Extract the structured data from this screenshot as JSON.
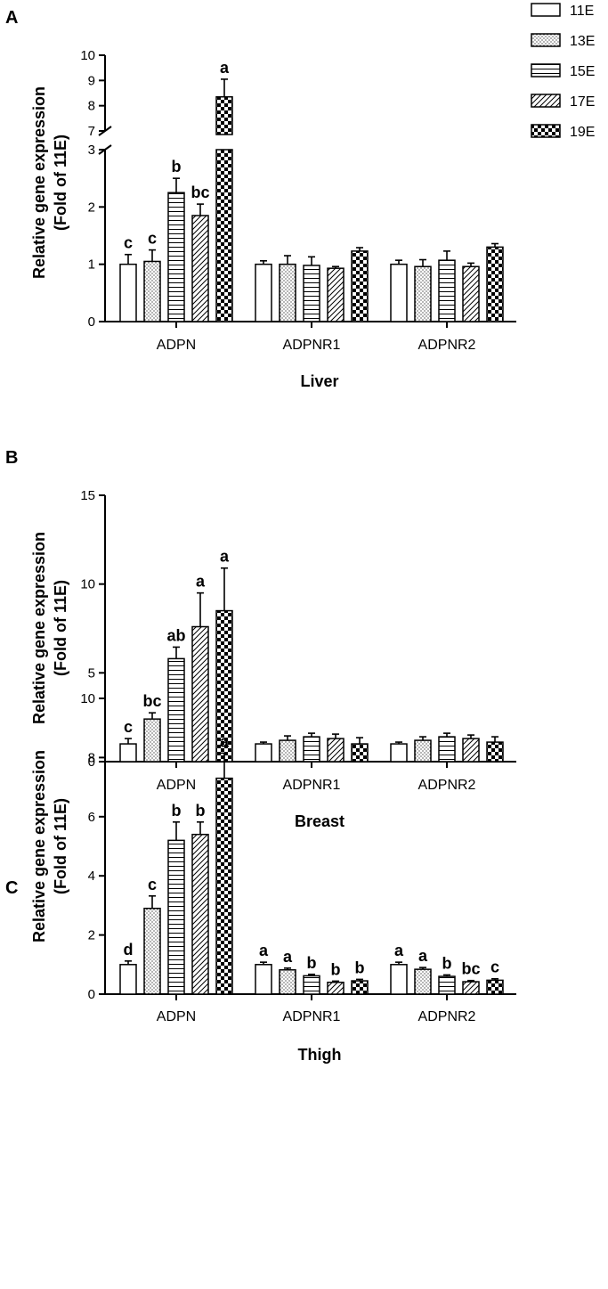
{
  "legend": {
    "placement": "top-right",
    "entries": [
      "11E",
      "13E",
      "15E",
      "17E",
      "19E"
    ]
  },
  "series_patterns": [
    "open",
    "dots",
    "horizontal-lines",
    "diagonal-hatch",
    "checkerboard"
  ],
  "chart_data": [
    {
      "type": "bar",
      "panel": "A",
      "xlabel": "Liver",
      "ylabel": [
        "Relative gene expression",
        "(Fold of 11E)"
      ],
      "categories": [
        "ADPN",
        "ADPNR1",
        "ADPNR2"
      ],
      "broken_axis": true,
      "ylim_lower": [
        0,
        3
      ],
      "ylim_upper": [
        7,
        10
      ],
      "yticks_lower": [
        "0",
        "1",
        "2",
        "3"
      ],
      "yticks_upper": [
        "7",
        "8",
        "9",
        "10"
      ],
      "series": [
        {
          "name": "11E",
          "values": [
            1.0,
            1.0,
            1.0
          ],
          "errors": [
            0.17,
            0.06,
            0.07
          ],
          "letters": [
            "c",
            "",
            ""
          ]
        },
        {
          "name": "13E",
          "values": [
            1.05,
            1.0,
            0.96
          ],
          "errors": [
            0.2,
            0.15,
            0.12
          ],
          "letters": [
            "c",
            "",
            ""
          ]
        },
        {
          "name": "15E",
          "values": [
            2.25,
            0.98,
            1.07
          ],
          "errors": [
            0.25,
            0.15,
            0.16
          ],
          "letters": [
            "b",
            "",
            ""
          ]
        },
        {
          "name": "17E",
          "values": [
            1.85,
            0.93,
            0.96
          ],
          "errors": [
            0.2,
            0.03,
            0.06
          ],
          "letters": [
            "bc",
            "",
            ""
          ]
        },
        {
          "name": "19E",
          "values": [
            8.35,
            1.23,
            1.3
          ],
          "errors": [
            0.7,
            0.06,
            0.06
          ],
          "letters": [
            "a",
            "",
            ""
          ]
        }
      ]
    },
    {
      "type": "bar",
      "panel": "B",
      "xlabel": "Breast",
      "ylabel": [
        "Relative gene expression",
        "(Fold of 11E)"
      ],
      "categories": [
        "ADPN",
        "ADPNR1",
        "ADPNR2"
      ],
      "broken_axis": false,
      "ylim": [
        0,
        15
      ],
      "yticks": [
        "0",
        "5",
        "10",
        "15"
      ],
      "series": [
        {
          "name": "11E",
          "values": [
            1.0,
            1.0,
            1.0
          ],
          "errors": [
            0.3,
            0.1,
            0.1
          ],
          "letters": [
            "c",
            "",
            ""
          ]
        },
        {
          "name": "13E",
          "values": [
            2.4,
            1.2,
            1.2
          ],
          "errors": [
            0.35,
            0.25,
            0.2
          ],
          "letters": [
            "bc",
            "",
            ""
          ]
        },
        {
          "name": "15E",
          "values": [
            5.8,
            1.4,
            1.4
          ],
          "errors": [
            0.65,
            0.2,
            0.2
          ],
          "letters": [
            "ab",
            "",
            ""
          ]
        },
        {
          "name": "17E",
          "values": [
            7.6,
            1.3,
            1.3
          ],
          "errors": [
            1.9,
            0.25,
            0.2
          ],
          "letters": [
            "a",
            "",
            ""
          ]
        },
        {
          "name": "19E",
          "values": [
            8.5,
            1.0,
            1.1
          ],
          "errors": [
            2.4,
            0.35,
            0.3
          ],
          "letters": [
            "a",
            "",
            ""
          ]
        }
      ]
    },
    {
      "type": "bar",
      "panel": "C",
      "xlabel": "Thigh",
      "ylabel": [
        "Relative gene expression",
        "(Fold of 11E)"
      ],
      "categories": [
        "ADPN",
        "ADPNR1",
        "ADPNR2"
      ],
      "broken_axis": false,
      "ylim": [
        0,
        10
      ],
      "yticks": [
        "0",
        "2",
        "4",
        "6",
        "8",
        "10"
      ],
      "series": [
        {
          "name": "11E",
          "values": [
            1.0,
            1.0,
            1.0
          ],
          "errors": [
            0.12,
            0.08,
            0.08
          ],
          "letters": [
            "d",
            "a",
            "a"
          ]
        },
        {
          "name": "13E",
          "values": [
            2.9,
            0.82,
            0.84
          ],
          "errors": [
            0.42,
            0.06,
            0.06
          ],
          "letters": [
            "c",
            "a",
            "a"
          ]
        },
        {
          "name": "15E",
          "values": [
            5.2,
            0.62,
            0.6
          ],
          "errors": [
            0.62,
            0.05,
            0.05
          ],
          "letters": [
            "b",
            "b",
            "b"
          ]
        },
        {
          "name": "17E",
          "values": [
            5.4,
            0.4,
            0.42
          ],
          "errors": [
            0.42,
            0.04,
            0.04
          ],
          "letters": [
            "b",
            "b",
            "bc"
          ]
        },
        {
          "name": "19E",
          "values": [
            7.3,
            0.45,
            0.47
          ],
          "errors": [
            0.85,
            0.05,
            0.05
          ],
          "letters": [
            "a",
            "b",
            "c"
          ]
        }
      ]
    }
  ]
}
